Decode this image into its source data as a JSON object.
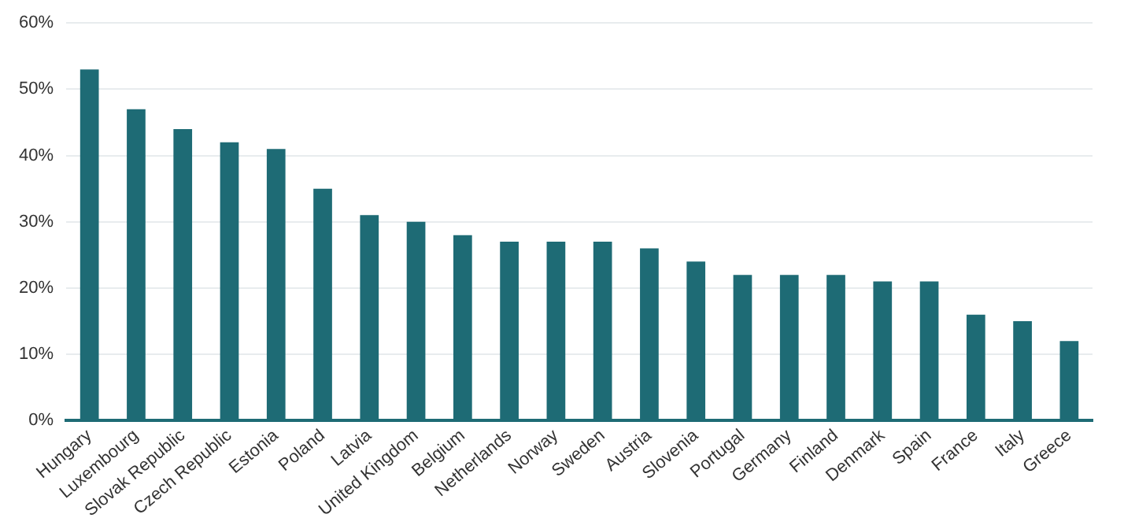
{
  "chart_data": {
    "type": "bar",
    "categories": [
      "Hungary",
      "Luxembourg",
      "Slovak Republic",
      "Czech Republic",
      "Estonia",
      "Poland",
      "Latvia",
      "United Kingdom",
      "Belgium",
      "Netherlands",
      "Norway",
      "Sweden",
      "Austria",
      "Slovenia",
      "Portugal",
      "Germany",
      "Finland",
      "Denmark",
      "Spain",
      "France",
      "Italy",
      "Greece"
    ],
    "values": [
      53,
      47,
      44,
      42,
      41,
      35,
      31,
      30,
      28,
      27,
      27,
      27,
      26,
      24,
      22,
      22,
      22,
      21,
      21,
      16,
      15,
      12
    ],
    "color": "#1e6b75",
    "ylim": [
      0,
      60
    ],
    "yticks": [
      {
        "value": 0,
        "label": "0%"
      },
      {
        "value": 10,
        "label": "10%"
      },
      {
        "value": 20,
        "label": "20%"
      },
      {
        "value": 30,
        "label": "30%"
      },
      {
        "value": 40,
        "label": "40%"
      },
      {
        "value": 50,
        "label": "50%"
      },
      {
        "value": 60,
        "label": "60%"
      }
    ],
    "grid": "y"
  }
}
